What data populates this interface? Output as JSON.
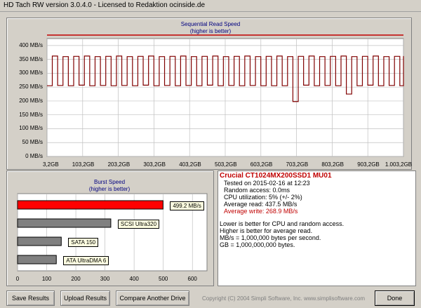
{
  "window": {
    "title": "HD Tach RW version 3.0.4.0 - Licensed to Redaktion ocinside.de"
  },
  "read_chart": {
    "title": "Sequential Read Speed",
    "subtitle": "(higher is better)",
    "y_labels": [
      "400 MB/s",
      "350 MB/s",
      "300 MB/s",
      "250 MB/s",
      "200 MB/s",
      "150 MB/s",
      "100 MB/s",
      "50 MB/s",
      "0 MB/s"
    ],
    "x_labels": [
      "3,2GB",
      "103,2GB",
      "203,2GB",
      "303,2GB",
      "403,2GB",
      "503,2GB",
      "603,2GB",
      "703,2GB",
      "803,2GB",
      "903,2GB",
      "1.003,2GB"
    ],
    "colors": {
      "read_line": "#800000",
      "write_line": "#c00000",
      "grid": "#c0c0c0"
    }
  },
  "chart_data": [
    {
      "type": "line",
      "title": "Sequential Read Speed",
      "subtitle": "(higher is better)",
      "ylabel": "",
      "ylim": [
        0,
        425
      ],
      "xlim": [
        3.2,
        1003.2
      ],
      "series": [
        {
          "name": "",
          "x": [
            3.2,
            18,
            33,
            48,
            63,
            78,
            93,
            108,
            123,
            138,
            153,
            168,
            183,
            198,
            213,
            228,
            243,
            258,
            273,
            288,
            303,
            318,
            333,
            348,
            363,
            378,
            393,
            408,
            423,
            438,
            453,
            468,
            483,
            498,
            513,
            528,
            543,
            558,
            573,
            588,
            603,
            618,
            633,
            648,
            663,
            678,
            693,
            708,
            723,
            738,
            753,
            768,
            783,
            798,
            813,
            828,
            843,
            858,
            873,
            888,
            903,
            918,
            933,
            948,
            963,
            978,
            993,
            1003.2
          ],
          "y": [
            255,
            362,
            256,
            360,
            255,
            361,
            257,
            362,
            255,
            360,
            256,
            361,
            255,
            362,
            256,
            360,
            255,
            361,
            257,
            362,
            255,
            360,
            256,
            361,
            255,
            362,
            256,
            360,
            255,
            361,
            257,
            362,
            255,
            360,
            256,
            361,
            255,
            362,
            256,
            360,
            255,
            361,
            255,
            362,
            255,
            360,
            198,
            361,
            257,
            362,
            255,
            360,
            256,
            361,
            255,
            362,
            225,
            360,
            255,
            361,
            257,
            362,
            255,
            360,
            256,
            361,
            255,
            362
          ]
        },
        {
          "name": "",
          "x": [
            3.2,
            1003.2
          ],
          "y": [
            437.5,
            437.5
          ]
        }
      ]
    },
    {
      "type": "bar",
      "title": "Burst Speed",
      "subtitle": "(higher is better)",
      "categories": [
        "499.2 MB/s",
        "SCSI Ultra320",
        "SATA 150",
        "ATA UltraDMA 6"
      ],
      "values": [
        499.2,
        320,
        150,
        133
      ],
      "xticks": [
        "0",
        "100",
        "200",
        "300",
        "400",
        "500",
        "600"
      ],
      "xlim": [
        0,
        650
      ]
    }
  ],
  "burst_chart": {
    "title": "Burst Speed",
    "subtitle": "(higher is better)",
    "ticks": [
      "0",
      "100",
      "200",
      "300",
      "400",
      "500",
      "600"
    ],
    "bars": [
      {
        "label": "499.2 MB/s",
        "color": "#ff0000"
      },
      {
        "label": "SCSI Ultra320",
        "color": "#808080"
      },
      {
        "label": "SATA 150",
        "color": "#808080"
      },
      {
        "label": "ATA UltraDMA 6",
        "color": "#808080"
      }
    ]
  },
  "info": {
    "drive": "Crucial  CT1024MX200SSD1 MU01",
    "tested": "Tested on 2015-02-16 at 12:23",
    "random_access": "Random access: 0.0ms",
    "cpu": "CPU utilization: 5% (+/- 2%)",
    "avg_read": "Average read: 437.5 MB/s",
    "avg_write": "Average write: 268.9 MB/s",
    "note1": "Lower is better for CPU and random access.",
    "note2": "Higher is better for average read.",
    "note3": "MB/s = 1,000,000 bytes per second.",
    "note4": "GB = 1,000,000,000 bytes.",
    "colors": {
      "drive": "#c00000",
      "avg_write": "#c00000"
    }
  },
  "buttons": {
    "save": "Save Results",
    "upload": "Upload Results",
    "compare": "Compare Another Drive",
    "done": "Done"
  },
  "footer": {
    "copyright": "Copyright (C) 2004 Simpli Software, Inc. www.simplisoftware.com"
  }
}
